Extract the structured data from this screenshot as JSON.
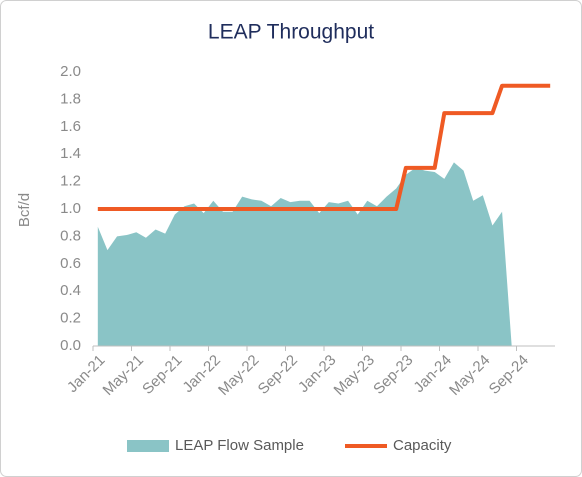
{
  "chart_data": {
    "type": "line",
    "title": "LEAP Throughput",
    "ylabel": "Bcf/d",
    "categories": [
      "Jan-21",
      null,
      null,
      null,
      "May-21",
      null,
      null,
      null,
      "Sep-21",
      null,
      null,
      null,
      "Jan-22",
      null,
      null,
      null,
      "May-22",
      null,
      null,
      null,
      "Sep-22",
      null,
      null,
      null,
      "Jan-23",
      null,
      null,
      null,
      "May-23",
      null,
      null,
      null,
      "Sep-23",
      null,
      null,
      null,
      "Jan-24",
      null,
      null,
      null,
      "May-24",
      null,
      null,
      null,
      "Sep-24",
      null,
      null,
      null
    ],
    "series": [
      {
        "name": "LEAP Flow Sample",
        "kind": "area",
        "color": "#8ac4c6",
        "values": [
          0.87,
          0.7,
          0.8,
          0.81,
          0.83,
          0.79,
          0.85,
          0.82,
          0.96,
          1.02,
          1.04,
          0.97,
          1.06,
          0.98,
          0.98,
          1.09,
          1.07,
          1.06,
          1.02,
          1.08,
          1.05,
          1.06,
          1.06,
          0.97,
          1.05,
          1.04,
          1.06,
          0.96,
          1.06,
          1.02,
          1.09,
          1.15,
          1.25,
          1.3,
          1.28,
          1.27,
          1.22,
          1.34,
          1.28,
          1.06,
          1.1,
          0.88,
          0.98,
          0,
          null,
          null,
          null,
          null
        ]
      },
      {
        "name": "Capacity",
        "kind": "line",
        "color": "#ef5a24",
        "values": [
          1.0,
          1.0,
          1.0,
          1.0,
          1.0,
          1.0,
          1.0,
          1.0,
          1.0,
          1.0,
          1.0,
          1.0,
          1.0,
          1.0,
          1.0,
          1.0,
          1.0,
          1.0,
          1.0,
          1.0,
          1.0,
          1.0,
          1.0,
          1.0,
          1.0,
          1.0,
          1.0,
          1.0,
          1.0,
          1.0,
          1.0,
          1.0,
          1.3,
          1.3,
          1.3,
          1.3,
          1.7,
          1.7,
          1.7,
          1.7,
          1.7,
          1.7,
          1.9,
          1.9,
          1.9,
          1.9,
          1.9,
          1.9
        ]
      }
    ],
    "ylim": [
      0,
      2.0
    ],
    "yticks": [
      {
        "value": 0,
        "label": "0.0"
      },
      {
        "value": 0.2,
        "label": "0.2"
      },
      {
        "value": 0.4,
        "label": "0.4"
      },
      {
        "value": 0.6,
        "label": "0.6"
      },
      {
        "value": 0.8,
        "label": "0.8"
      },
      {
        "value": 1.0,
        "label": "1.0"
      },
      {
        "value": 1.2,
        "label": "1.2"
      },
      {
        "value": 1.4,
        "label": "1.4"
      },
      {
        "value": 1.6,
        "label": "1.6"
      },
      {
        "value": 1.8,
        "label": "1.8"
      },
      {
        "value": 2.0,
        "label": "2.0"
      }
    ],
    "grid": false,
    "legend": "bottom"
  }
}
